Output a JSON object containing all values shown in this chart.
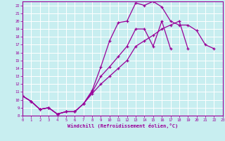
{
  "xlabel": "Windchill (Refroidissement éolien,°C)",
  "bg_color": "#c8eef0",
  "grid_color": "#ffffff",
  "line_color": "#990099",
  "line1_x": [
    0,
    1,
    2,
    3,
    4,
    5,
    6,
    7,
    8,
    9,
    10,
    11,
    12,
    13,
    14,
    15,
    16,
    17,
    18,
    19,
    20,
    21,
    22,
    23
  ],
  "line1_y": [
    10.5,
    9.8,
    8.8,
    9.0,
    8.2,
    8.5,
    8.5,
    9.5,
    11.2,
    14.2,
    17.5,
    19.8,
    20.0,
    22.3,
    22.0,
    22.5,
    21.8,
    20.0,
    19.5,
    19.5,
    18.8,
    17.0,
    16.5,
    null
  ],
  "line2_x": [
    0,
    1,
    2,
    3,
    4,
    5,
    6,
    7,
    8,
    9,
    10,
    11,
    12,
    13,
    14,
    15,
    16,
    17,
    18,
    19,
    20,
    21,
    22,
    23
  ],
  "line2_y": [
    10.5,
    9.8,
    8.8,
    9.0,
    8.2,
    8.5,
    8.5,
    9.5,
    11.0,
    13.0,
    14.2,
    15.5,
    16.8,
    19.0,
    19.0,
    16.8,
    20.0,
    16.5,
    null,
    null,
    null,
    null,
    null,
    null
  ],
  "line3_x": [
    0,
    1,
    2,
    3,
    4,
    5,
    6,
    7,
    8,
    9,
    10,
    11,
    12,
    13,
    14,
    15,
    16,
    17,
    18,
    19,
    20,
    21,
    22,
    23
  ],
  "line3_y": [
    10.5,
    9.8,
    8.8,
    9.0,
    8.2,
    8.5,
    8.5,
    9.5,
    10.8,
    12.0,
    13.0,
    14.0,
    15.0,
    16.8,
    17.5,
    18.2,
    19.0,
    19.5,
    20.0,
    16.5,
    null,
    null,
    null,
    null
  ],
  "xlim": [
    0,
    23
  ],
  "ylim": [
    8,
    22.5
  ],
  "xticks": [
    0,
    1,
    2,
    3,
    4,
    5,
    6,
    7,
    8,
    9,
    10,
    11,
    12,
    13,
    14,
    15,
    16,
    17,
    18,
    19,
    20,
    21,
    22,
    23
  ],
  "yticks": [
    8,
    9,
    10,
    11,
    12,
    13,
    14,
    15,
    16,
    17,
    18,
    19,
    20,
    21,
    22
  ]
}
